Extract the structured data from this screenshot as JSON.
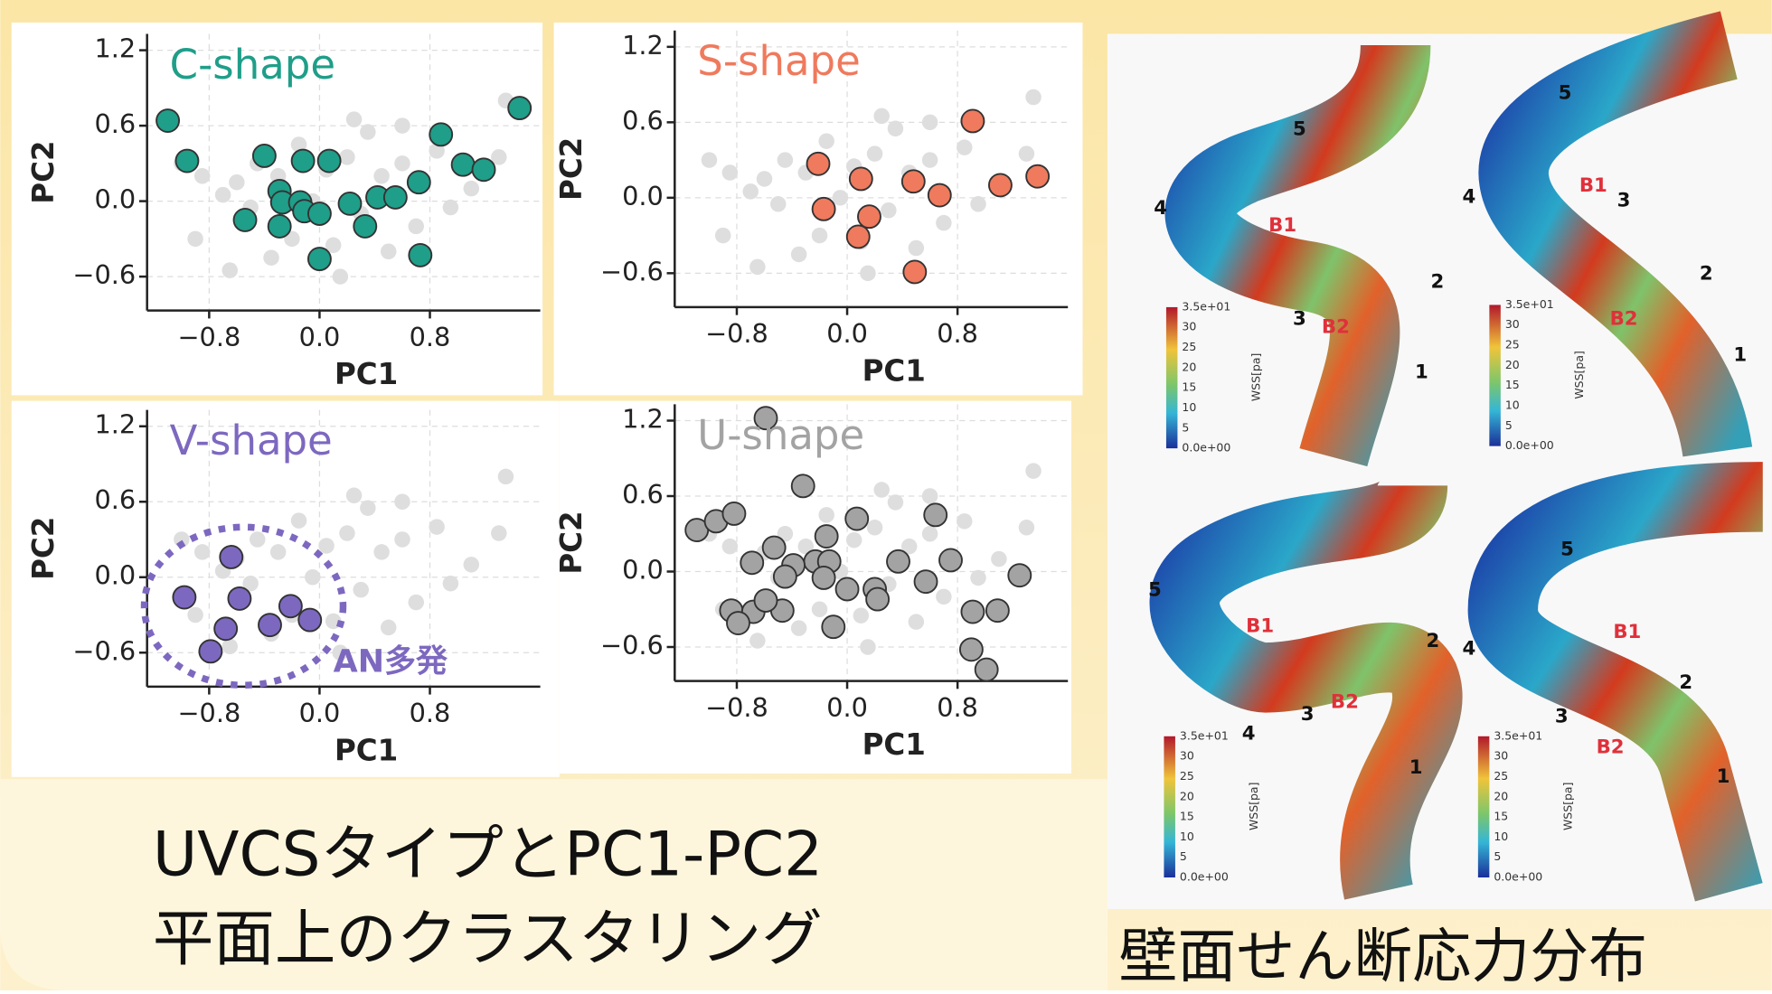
{
  "chart_data": [
    {
      "type": "scatter",
      "title": "C-shape",
      "xlabel": "PC1",
      "ylabel": "PC2",
      "xlim": [
        -1.25,
        1.6
      ],
      "ylim": [
        -0.87,
        1.33
      ],
      "xticks": [
        {
          "value": -0.8,
          "label": "−0.8"
        },
        {
          "value": 0,
          "label": "0.0"
        },
        {
          "value": 0.8,
          "label": "0.8"
        }
      ],
      "yticks": [
        {
          "value": -0.6,
          "label": "−0.6"
        },
        {
          "value": 0,
          "label": "0.0"
        },
        {
          "value": 0.6,
          "label": "0.6"
        },
        {
          "value": 1.2,
          "label": "1.2"
        }
      ],
      "grid": true,
      "series": [
        {
          "color": "#dedede",
          "x": [
            -1.0,
            -0.85,
            -0.7,
            -0.6,
            -0.5,
            -0.45,
            -0.3,
            -0.2,
            -0.15,
            -0.05,
            0.05,
            0.1,
            0.2,
            0.3,
            0.35,
            0.45,
            0.5,
            0.6,
            0.7,
            0.85,
            0.95,
            1.1,
            1.3,
            1.35,
            -0.9,
            -0.35,
            0.15,
            0.6,
            -0.65,
            0.25
          ],
          "y": [
            0.3,
            0.2,
            0.05,
            0.15,
            -0.05,
            0.3,
            0.2,
            -0.3,
            0.45,
            0.0,
            0.25,
            -0.35,
            0.35,
            -0.1,
            0.55,
            0.2,
            -0.4,
            0.6,
            -0.2,
            0.4,
            -0.05,
            0.1,
            0.35,
            0.8,
            -0.3,
            -0.45,
            -0.6,
            0.3,
            -0.55,
            0.65
          ]
        },
        {
          "color": "#1f9e89",
          "x": [
            -1.1,
            -0.96,
            -0.4,
            -0.12,
            0.07,
            -0.29,
            -0.27,
            -0.14,
            -0.11,
            0.0,
            -0.54,
            -0.29,
            0.22,
            0.42,
            0.55,
            0.72,
            0.33,
            0.0,
            0.73,
            0.88,
            1.04,
            1.19,
            1.45
          ],
          "y": [
            0.64,
            0.32,
            0.36,
            0.32,
            0.32,
            0.08,
            -0.01,
            -0.01,
            -0.08,
            -0.1,
            -0.15,
            -0.2,
            -0.02,
            0.03,
            0.03,
            0.15,
            -0.2,
            -0.46,
            -0.43,
            0.53,
            0.29,
            0.25,
            0.74
          ]
        }
      ]
    },
    {
      "type": "scatter",
      "title": "S-shape",
      "xlabel": "PC1",
      "ylabel": "PC2",
      "xlim": [
        -1.25,
        1.6
      ],
      "ylim": [
        -0.87,
        1.33
      ],
      "xticks": [
        {
          "value": -0.8,
          "label": "−0.8"
        },
        {
          "value": 0,
          "label": "0.0"
        },
        {
          "value": 0.8,
          "label": "0.8"
        }
      ],
      "yticks": [
        {
          "value": -0.6,
          "label": "−0.6"
        },
        {
          "value": 0,
          "label": "0.0"
        },
        {
          "value": 0.6,
          "label": "0.6"
        },
        {
          "value": 1.2,
          "label": "1.2"
        }
      ],
      "grid": true,
      "series": [
        {
          "color": "#dedede",
          "x": [
            -1.0,
            -0.85,
            -0.7,
            -0.6,
            -0.5,
            -0.45,
            -0.3,
            -0.2,
            -0.15,
            -0.05,
            0.05,
            0.1,
            0.2,
            0.3,
            0.35,
            0.45,
            0.5,
            0.6,
            0.7,
            0.85,
            0.95,
            1.1,
            1.3,
            1.35,
            -0.9,
            -0.35,
            0.15,
            0.6,
            -0.65,
            0.25
          ],
          "y": [
            0.3,
            0.2,
            0.05,
            0.15,
            -0.05,
            0.3,
            0.2,
            -0.3,
            0.45,
            0.0,
            0.25,
            -0.35,
            0.35,
            -0.1,
            0.55,
            0.2,
            -0.4,
            0.6,
            -0.2,
            0.4,
            -0.05,
            0.1,
            0.35,
            0.8,
            -0.3,
            -0.45,
            -0.6,
            0.3,
            -0.55,
            0.65
          ]
        },
        {
          "color": "#ef7a5d",
          "x": [
            -0.21,
            0.1,
            0.48,
            0.91,
            1.11,
            1.38,
            -0.17,
            0.16,
            0.08,
            0.67,
            0.49
          ],
          "y": [
            0.27,
            0.15,
            0.13,
            0.61,
            0.1,
            0.17,
            -0.09,
            -0.15,
            -0.31,
            0.02,
            -0.59
          ]
        }
      ]
    },
    {
      "type": "scatter",
      "title": "V-shape",
      "xlabel": "PC1",
      "ylabel": "PC2",
      "annotation": "AN多発",
      "xlim": [
        -1.25,
        1.6
      ],
      "ylim": [
        -0.87,
        1.33
      ],
      "xticks": [
        {
          "value": -0.8,
          "label": "−0.8"
        },
        {
          "value": 0,
          "label": "0.0"
        },
        {
          "value": 0.8,
          "label": "0.8"
        }
      ],
      "yticks": [
        {
          "value": -0.6,
          "label": "−0.6"
        },
        {
          "value": 0,
          "label": "0.0"
        },
        {
          "value": 0.6,
          "label": "0.6"
        },
        {
          "value": 1.2,
          "label": "1.2"
        }
      ],
      "grid": true,
      "series": [
        {
          "color": "#dedede",
          "x": [
            -1.0,
            -0.85,
            -0.7,
            -0.6,
            -0.5,
            -0.45,
            -0.3,
            -0.2,
            -0.15,
            -0.05,
            0.05,
            0.1,
            0.2,
            0.3,
            0.35,
            0.45,
            0.5,
            0.6,
            0.7,
            0.85,
            0.95,
            1.1,
            1.3,
            1.35,
            -0.9,
            -0.35,
            0.15,
            0.6,
            -0.65,
            0.25
          ],
          "y": [
            0.3,
            0.2,
            0.05,
            0.15,
            -0.05,
            0.3,
            0.2,
            -0.3,
            0.45,
            0.0,
            0.25,
            -0.35,
            0.35,
            -0.1,
            0.55,
            0.2,
            -0.4,
            0.6,
            -0.2,
            0.4,
            -0.05,
            0.1,
            0.35,
            0.8,
            -0.3,
            -0.45,
            -0.6,
            0.3,
            -0.55,
            0.65
          ]
        },
        {
          "color": "#7d68c0",
          "x": [
            -0.64,
            -0.98,
            -0.58,
            -0.21,
            -0.36,
            -0.07,
            -0.68,
            -0.79
          ],
          "y": [
            0.16,
            -0.16,
            -0.17,
            -0.23,
            -0.38,
            -0.34,
            -0.41,
            -0.59
          ]
        }
      ]
    },
    {
      "type": "scatter",
      "title": "U-shape",
      "xlabel": "PC1",
      "ylabel": "PC2",
      "xlim": [
        -1.25,
        1.6
      ],
      "ylim": [
        -0.87,
        1.33
      ],
      "xticks": [
        {
          "value": -0.8,
          "label": "−0.8"
        },
        {
          "value": 0,
          "label": "0.0"
        },
        {
          "value": 0.8,
          "label": "0.8"
        }
      ],
      "yticks": [
        {
          "value": -0.6,
          "label": "−0.6"
        },
        {
          "value": 0,
          "label": "0.0"
        },
        {
          "value": 0.6,
          "label": "0.6"
        },
        {
          "value": 1.2,
          "label": "1.2"
        }
      ],
      "grid": true,
      "series": [
        {
          "color": "#dedede",
          "x": [
            -1.0,
            -0.85,
            -0.7,
            -0.6,
            -0.5,
            -0.45,
            -0.3,
            -0.2,
            -0.15,
            -0.05,
            0.05,
            0.1,
            0.2,
            0.3,
            0.35,
            0.45,
            0.5,
            0.6,
            0.7,
            0.85,
            0.95,
            1.1,
            1.3,
            1.35,
            -0.9,
            -0.35,
            0.15,
            0.6,
            -0.65,
            0.25
          ],
          "y": [
            0.3,
            0.2,
            0.05,
            0.15,
            -0.05,
            0.3,
            0.2,
            -0.3,
            0.45,
            0.0,
            0.25,
            -0.35,
            0.35,
            -0.1,
            0.55,
            0.2,
            -0.4,
            0.6,
            -0.2,
            0.4,
            -0.05,
            0.1,
            0.35,
            0.8,
            -0.3,
            -0.45,
            -0.6,
            0.3,
            -0.55,
            0.65
          ]
        },
        {
          "color": "#a3a3a3",
          "x": [
            -0.59,
            -0.32,
            -1.09,
            -0.95,
            -0.82,
            0.07,
            0.64,
            -0.53,
            -0.69,
            -0.15,
            -0.23,
            -0.39,
            -0.13,
            0.37,
            0.75,
            1.25,
            -0.45,
            -0.17,
            0.0,
            0.57,
            0.2,
            -0.84,
            -0.68,
            -0.47,
            -0.59,
            -0.79,
            -0.1,
            0.22,
            0.91,
            1.09,
            0.9,
            1.01
          ],
          "y": [
            1.22,
            0.68,
            0.33,
            0.4,
            0.46,
            0.42,
            0.45,
            0.19,
            0.07,
            0.28,
            0.08,
            0.05,
            0.08,
            0.08,
            0.09,
            -0.03,
            -0.04,
            -0.05,
            -0.14,
            -0.08,
            -0.14,
            -0.31,
            -0.32,
            -0.31,
            -0.23,
            -0.41,
            -0.44,
            -0.22,
            -0.32,
            -0.31,
            -0.62,
            -0.78
          ]
        }
      ]
    }
  ],
  "captions": {
    "left": [
      "UVCSタイプとPC1-PC2",
      "平面上のクラスタリング"
    ],
    "right": "壁面せん断応力分布"
  },
  "wss_figure": {
    "panels": [
      {
        "labels": [
          "1",
          "2",
          "3",
          "4",
          "5",
          "B1",
          "B2"
        ]
      },
      {
        "labels": [
          "1",
          "2",
          "3",
          "4",
          "5",
          "B1",
          "B2"
        ]
      },
      {
        "labels": [
          "1",
          "2",
          "3",
          "4",
          "5",
          "B1",
          "B2"
        ]
      },
      {
        "labels": [
          "1",
          "2",
          "3",
          "4",
          "5",
          "B1",
          "B2"
        ]
      }
    ],
    "colorbar": {
      "ticks": [
        "3.5e+01",
        "30",
        "25",
        "20",
        "15",
        "10",
        "5",
        "0.0e+00"
      ],
      "label": "WSS[pa]"
    }
  }
}
